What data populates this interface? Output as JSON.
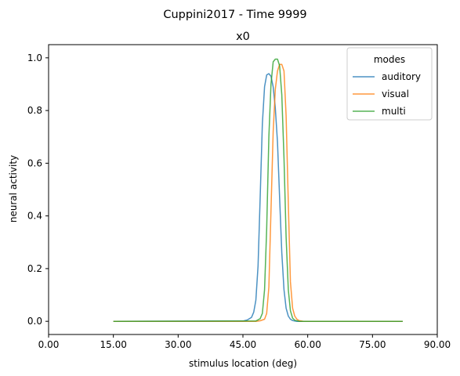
{
  "suptitle": "Cuppini2017 - Time 9999",
  "chart_data": {
    "type": "line",
    "title": "x0",
    "xlabel": "stimulus location (deg)",
    "ylabel": "neural activity",
    "xlim": [
      0,
      90
    ],
    "ylim": [
      -0.05,
      1.05
    ],
    "xticks": [
      "0.00",
      "15.00",
      "30.00",
      "45.00",
      "60.00",
      "75.00",
      "90.00"
    ],
    "xtick_values": [
      0,
      15,
      30,
      45,
      60,
      75,
      90
    ],
    "yticks": [
      "0.0",
      "0.2",
      "0.4",
      "0.6",
      "0.8",
      "1.0"
    ],
    "ytick_values": [
      0,
      0.2,
      0.4,
      0.6,
      0.8,
      1.0
    ],
    "grid": false,
    "legend": {
      "title": "modes",
      "placement": "top-right"
    },
    "series": [
      {
        "name": "auditory",
        "color": "#1f77b4",
        "x": [
          15,
          45,
          46,
          47,
          47.5,
          48,
          48.5,
          49,
          49.5,
          50,
          50.5,
          51,
          51.5,
          52,
          52.5,
          53,
          53.5,
          54,
          54.5,
          55,
          55.5,
          56,
          56.5,
          57,
          57.5,
          58,
          60,
          82
        ],
        "y": [
          0.0,
          0.001,
          0.005,
          0.015,
          0.035,
          0.08,
          0.21,
          0.47,
          0.75,
          0.89,
          0.935,
          0.94,
          0.93,
          0.89,
          0.81,
          0.68,
          0.47,
          0.26,
          0.12,
          0.05,
          0.02,
          0.008,
          0.003,
          0.001,
          0.0,
          0.0,
          0.0,
          0.0
        ]
      },
      {
        "name": "visual",
        "color": "#ff7f0e",
        "x": [
          15,
          48,
          49,
          50,
          50.5,
          51,
          51.5,
          52,
          52.5,
          53,
          53.5,
          54,
          54.5,
          55,
          55.5,
          56,
          56.5,
          57,
          57.5,
          58,
          59,
          60,
          82
        ],
        "y": [
          0.0,
          0.0,
          0.002,
          0.008,
          0.03,
          0.13,
          0.42,
          0.72,
          0.88,
          0.95,
          0.975,
          0.975,
          0.95,
          0.78,
          0.45,
          0.15,
          0.05,
          0.02,
          0.008,
          0.003,
          0.0,
          0.0,
          0.0
        ]
      },
      {
        "name": "multi",
        "color": "#2ca02c",
        "x": [
          15,
          48,
          49,
          49.5,
          50,
          50.5,
          51,
          51.5,
          52,
          52.5,
          53,
          53.5,
          54,
          54.5,
          55,
          55.5,
          56,
          56.5,
          57,
          58,
          60,
          82
        ],
        "y": [
          0.0,
          0.001,
          0.01,
          0.03,
          0.12,
          0.35,
          0.7,
          0.9,
          0.985,
          0.995,
          0.995,
          0.97,
          0.86,
          0.62,
          0.32,
          0.12,
          0.04,
          0.012,
          0.004,
          0.0,
          0.0,
          0.0
        ]
      }
    ]
  }
}
